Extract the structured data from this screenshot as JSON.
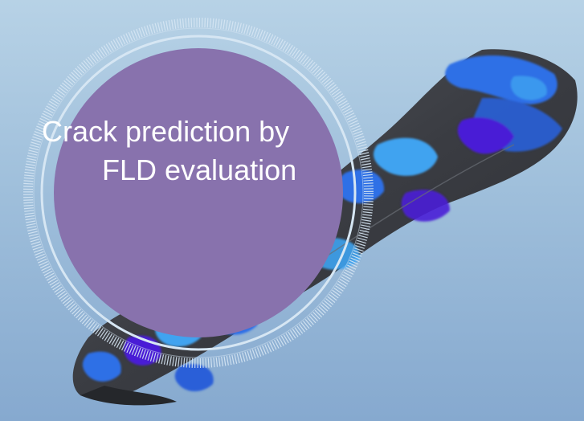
{
  "caption": {
    "line1": "Crack prediction by",
    "line2": "FLD evaluation"
  },
  "colors": {
    "background_top": "#b7d2e6",
    "background_bottom": "#86a9cf",
    "badge_fill": "#8872ad",
    "badge_ring": "#d6e6f3",
    "part_surface": "#3d3f45",
    "fld_safe_blue": "#2f6fe6",
    "fld_light_blue": "#3fa3f0",
    "fld_warning_purple": "#4a1fd6"
  },
  "icons": {
    "part": "sheet-metal-part-icon",
    "badge": "circular-badge-icon"
  }
}
